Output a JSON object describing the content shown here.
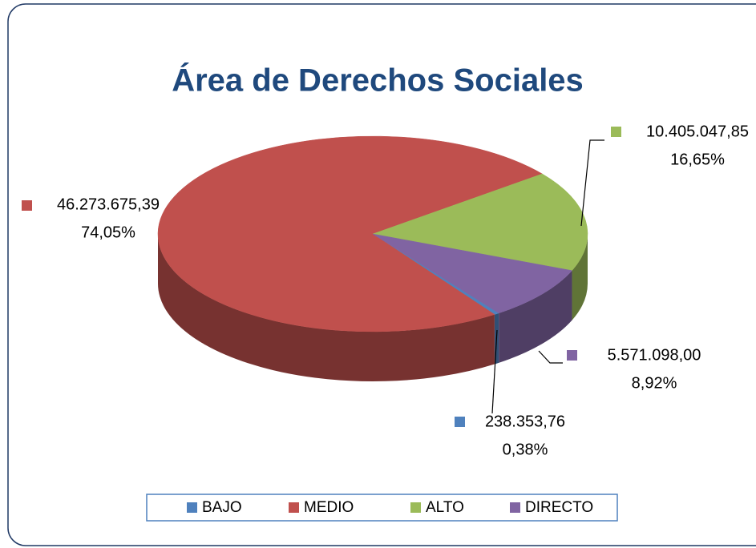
{
  "chart_data": {
    "type": "pie3d",
    "title": "Área de Derechos Sociales",
    "categories": [
      "BAJO",
      "MEDIO",
      "ALTO",
      "DIRECTO"
    ],
    "values": [
      238353.76,
      46273675.39,
      10405047.85,
      5571098.0
    ],
    "value_labels": [
      "238.353,76",
      "46.273.675,39",
      "10.405.047,85",
      "5.571.098,00"
    ],
    "percentages": [
      0.38,
      74.05,
      16.65,
      8.92
    ],
    "percentage_labels": [
      "0,38%",
      "74,05%",
      "16,65%",
      "8,92%"
    ],
    "colors": [
      "#4f81bd",
      "#c0504d",
      "#9bbb59",
      "#8064a2"
    ],
    "legend": "bottom"
  }
}
